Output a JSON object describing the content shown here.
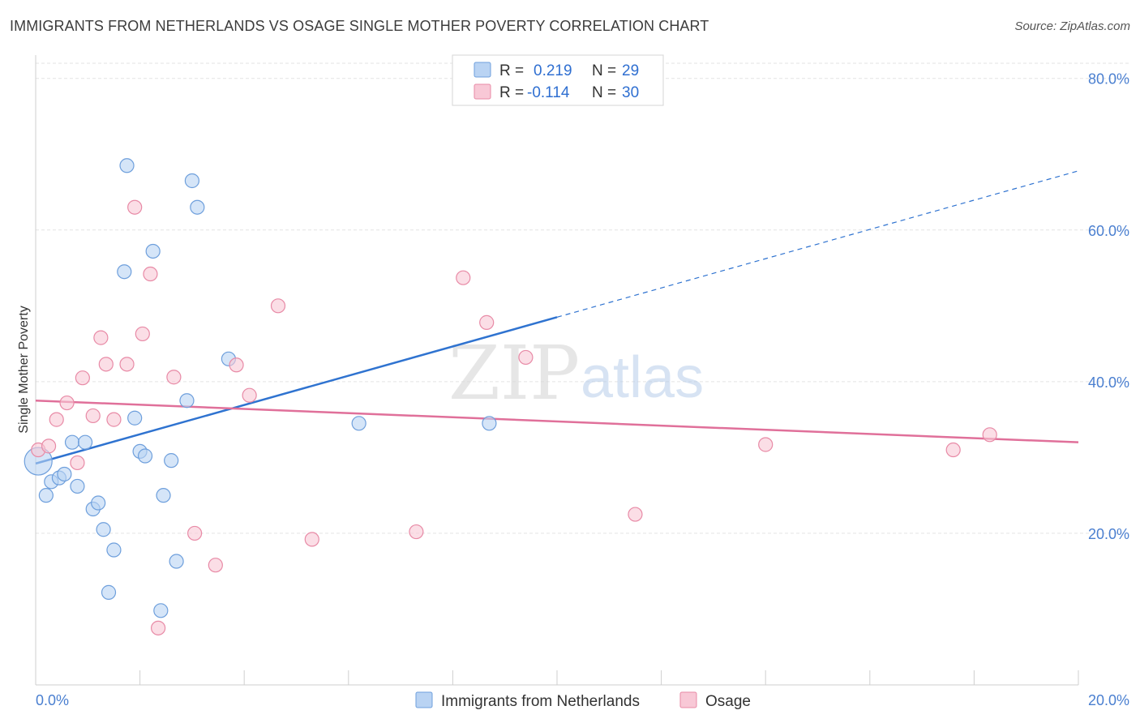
{
  "header": {
    "title": "IMMIGRANTS FROM NETHERLANDS VS OSAGE SINGLE MOTHER POVERTY CORRELATION CHART",
    "source": "Source: ZipAtlas.com"
  },
  "watermark": {
    "part1": "ZIP",
    "part2": "atlas"
  },
  "colors": {
    "blue_fill": "#b9d3f3",
    "blue_stroke": "#6e9fdc",
    "blue_line": "#2f73d0",
    "pink_fill": "#f8c8d6",
    "pink_stroke": "#e88aa6",
    "pink_line": "#e0709a",
    "tick_text": "#4a7fd0",
    "grid": "#e3e3e3"
  },
  "legend": {
    "rows": [
      {
        "r_label": "R =",
        "r_value": "0.219",
        "n_label": "N =",
        "n_value": "29"
      },
      {
        "r_label": "R =",
        "r_value": "-0.114",
        "n_label": "N =",
        "n_value": "30"
      }
    ]
  },
  "chart_data": {
    "type": "scatter",
    "title": "IMMIGRANTS FROM NETHERLANDS VS OSAGE SINGLE MOTHER POVERTY CORRELATION CHART",
    "xlabel": "",
    "ylabel": "Single Mother Poverty",
    "xlim": [
      0,
      20
    ],
    "ylim": [
      0,
      82
    ],
    "x_tick_labels": [
      "0.0%",
      "20.0%"
    ],
    "y_ticks": [
      20,
      40,
      60,
      80
    ],
    "y_tick_labels": [
      "20.0%",
      "40.0%",
      "60.0%",
      "80.0%"
    ],
    "grid": true,
    "legend_position": "top-center",
    "series": [
      {
        "name": "Immigrants from Netherlands",
        "r": 0.219,
        "n": 29,
        "points": [
          [
            0.05,
            29.5
          ],
          [
            0.2,
            25.0
          ],
          [
            0.3,
            26.8
          ],
          [
            0.45,
            27.3
          ],
          [
            0.55,
            27.8
          ],
          [
            0.7,
            32.0
          ],
          [
            0.8,
            26.2
          ],
          [
            0.95,
            32.0
          ],
          [
            1.1,
            23.2
          ],
          [
            1.2,
            24.0
          ],
          [
            1.3,
            20.5
          ],
          [
            1.5,
            17.8
          ],
          [
            1.4,
            12.2
          ],
          [
            1.7,
            54.5
          ],
          [
            1.75,
            68.5
          ],
          [
            1.9,
            35.2
          ],
          [
            2.0,
            30.8
          ],
          [
            2.1,
            30.2
          ],
          [
            2.25,
            57.2
          ],
          [
            2.45,
            25.0
          ],
          [
            2.6,
            29.6
          ],
          [
            2.7,
            16.3
          ],
          [
            2.4,
            9.8
          ],
          [
            2.9,
            37.5
          ],
          [
            3.0,
            66.5
          ],
          [
            3.1,
            63.0
          ],
          [
            3.7,
            43.0
          ],
          [
            6.2,
            34.5
          ],
          [
            8.7,
            34.5
          ]
        ],
        "trend": {
          "x0": 0,
          "y0": 29.2,
          "x1": 10.0,
          "y1": 48.5,
          "dashed_to_x": 20.0,
          "dashed_to_y": 67.8
        }
      },
      {
        "name": "Osage",
        "r": -0.114,
        "n": 30,
        "points": [
          [
            0.05,
            31.0
          ],
          [
            0.25,
            31.5
          ],
          [
            0.4,
            35.0
          ],
          [
            0.6,
            37.2
          ],
          [
            0.8,
            29.3
          ],
          [
            0.9,
            40.5
          ],
          [
            1.1,
            35.5
          ],
          [
            1.25,
            45.8
          ],
          [
            1.35,
            42.3
          ],
          [
            1.5,
            35.0
          ],
          [
            1.75,
            42.3
          ],
          [
            1.9,
            63.0
          ],
          [
            2.05,
            46.3
          ],
          [
            2.2,
            54.2
          ],
          [
            2.65,
            40.6
          ],
          [
            3.05,
            20.0
          ],
          [
            2.35,
            7.5
          ],
          [
            3.45,
            15.8
          ],
          [
            3.85,
            42.2
          ],
          [
            4.1,
            38.2
          ],
          [
            4.65,
            50.0
          ],
          [
            5.3,
            19.2
          ],
          [
            7.3,
            20.2
          ],
          [
            8.2,
            53.7
          ],
          [
            8.65,
            47.8
          ],
          [
            9.4,
            43.2
          ],
          [
            11.5,
            22.5
          ],
          [
            14.0,
            31.7
          ],
          [
            17.6,
            31.0
          ],
          [
            18.3,
            33.0
          ]
        ],
        "trend": {
          "x0": 0,
          "y0": 37.5,
          "x1": 20.0,
          "y1": 32.0
        }
      }
    ]
  }
}
